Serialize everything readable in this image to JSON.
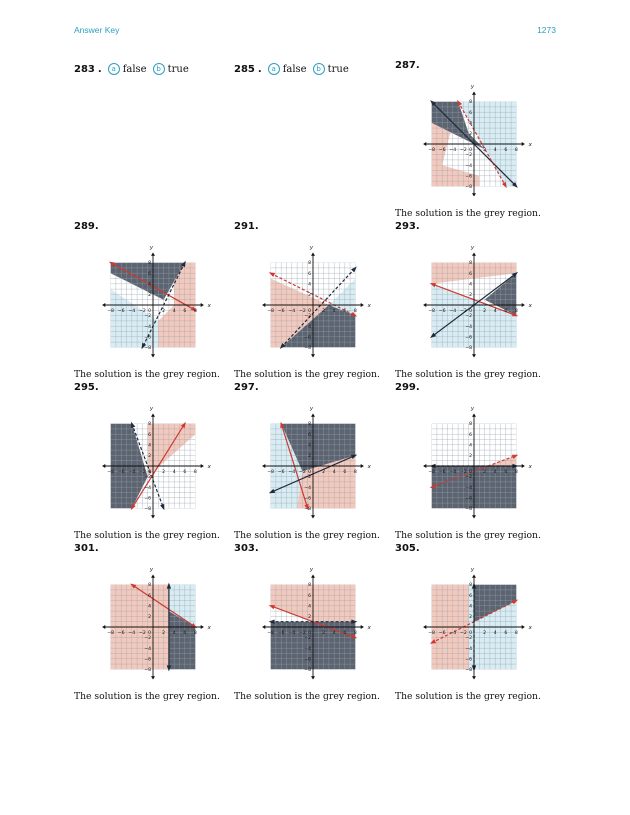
{
  "header": {
    "left": "Answer Key",
    "right": "1273"
  },
  "answers": [
    {
      "id": "283",
      "number": "283",
      "parts": [
        {
          "marker": "a",
          "text": "false"
        },
        {
          "marker": "b",
          "text": "true"
        }
      ]
    },
    {
      "id": "285",
      "number": "285",
      "parts": [
        {
          "marker": "a",
          "text": "false"
        },
        {
          "marker": "b",
          "text": "true"
        }
      ]
    }
  ],
  "caption_text": "The solution is the grey region.",
  "axis": {
    "x_label": "x",
    "y_label": "y",
    "ticks": [
      -8,
      -6,
      -4,
      -2,
      2,
      4,
      6,
      8
    ],
    "min": -8,
    "max": 8
  },
  "colors": {
    "grey": "#5b6470",
    "pink": "#f3c9bd",
    "blue": "#d8ecf4",
    "dark_line": "#1f2a3a",
    "red_line": "#cc3a33",
    "accent": "#2a9fbf"
  },
  "graphs": [
    {
      "number": "287",
      "caption": "The solution is the grey region.",
      "regions": [
        {
          "color": "pink",
          "poly": [
            [
              -8,
              8
            ],
            [
              -3,
              8
            ],
            [
              -6,
              -4
            ],
            [
              -8,
              -4
            ]
          ]
        },
        {
          "color": "pink",
          "poly": [
            [
              -8,
              -4
            ],
            [
              -6,
              -4
            ],
            [
              1,
              -6
            ],
            [
              1,
              -8
            ],
            [
              -8,
              -8
            ]
          ]
        },
        {
          "color": "blue",
          "poly": [
            [
              -3,
              8
            ],
            [
              8,
              8
            ],
            [
              8,
              -8
            ],
            [
              6,
              -8
            ],
            [
              -3,
              8
            ]
          ]
        },
        {
          "color": "grey",
          "poly": [
            [
              -8,
              8
            ],
            [
              -3,
              8
            ],
            [
              -1,
              2
            ],
            [
              2,
              -1
            ],
            [
              -8,
              4
            ]
          ]
        }
      ],
      "lines": [
        {
          "p1": [
            -8,
            8
          ],
          "p2": [
            8,
            -8
          ],
          "color": "dark_line",
          "dashed": false
        },
        {
          "p1": [
            -3,
            8
          ],
          "p2": [
            6,
            -8
          ],
          "color": "red_line",
          "dashed": true
        }
      ]
    },
    {
      "number": "289",
      "caption": "The solution is the grey region.",
      "regions": [
        {
          "color": "blue",
          "poly": [
            [
              -8,
              8
            ],
            [
              -8,
              -8
            ],
            [
              1,
              -8
            ],
            [
              1,
              -3
            ],
            [
              -8,
              3
            ]
          ]
        },
        {
          "color": "pink",
          "poly": [
            [
              4,
              8
            ],
            [
              8,
              8
            ],
            [
              8,
              -8
            ],
            [
              1,
              -8
            ],
            [
              1,
              -3
            ],
            [
              4,
              0
            ]
          ]
        },
        {
          "color": "grey",
          "poly": [
            [
              -8,
              8
            ],
            [
              6,
              8
            ],
            [
              2,
              1
            ],
            [
              -8,
              6
            ]
          ]
        }
      ],
      "lines": [
        {
          "p1": [
            -8,
            8
          ],
          "p2": [
            8,
            -1
          ],
          "color": "red_line",
          "dashed": false
        },
        {
          "p1": [
            6,
            8
          ],
          "p2": [
            -2,
            -8
          ],
          "color": "dark_line",
          "dashed": true
        }
      ]
    },
    {
      "number": "291",
      "caption": "The solution is the grey region.",
      "regions": [
        {
          "color": "pink",
          "poly": [
            [
              -8,
              8
            ],
            [
              -8,
              -8
            ],
            [
              -6,
              -8
            ],
            [
              3,
              0
            ],
            [
              -8,
              5
            ]
          ]
        },
        {
          "color": "blue",
          "poly": [
            [
              8,
              8
            ],
            [
              8,
              -2
            ],
            [
              3,
              0
            ],
            [
              8,
              5
            ]
          ]
        },
        {
          "color": "grey",
          "poly": [
            [
              -6,
              -8
            ],
            [
              8,
              -8
            ],
            [
              8,
              -2
            ],
            [
              3,
              0
            ]
          ]
        }
      ],
      "lines": [
        {
          "p1": [
            -8,
            6
          ],
          "p2": [
            8,
            -2
          ],
          "color": "red_line",
          "dashed": true
        },
        {
          "p1": [
            -6,
            -8
          ],
          "p2": [
            8,
            7
          ],
          "color": "dark_line",
          "dashed": true
        }
      ]
    },
    {
      "number": "293",
      "caption": "The solution is the grey region.",
      "regions": [
        {
          "color": "pink",
          "poly": [
            [
              -8,
              8
            ],
            [
              8,
              8
            ],
            [
              8,
              6
            ],
            [
              -8,
              4
            ]
          ]
        },
        {
          "color": "blue",
          "poly": [
            [
              -8,
              4
            ],
            [
              8,
              -2
            ],
            [
              8,
              -8
            ],
            [
              -8,
              -8
            ]
          ]
        },
        {
          "color": "grey",
          "poly": [
            [
              2,
              1
            ],
            [
              8,
              6
            ],
            [
              8,
              -2
            ]
          ]
        }
      ],
      "lines": [
        {
          "p1": [
            -8,
            4
          ],
          "p2": [
            8,
            -2
          ],
          "color": "red_line",
          "dashed": false
        },
        {
          "p1": [
            -8,
            -6
          ],
          "p2": [
            8,
            6
          ],
          "color": "dark_line",
          "dashed": false
        }
      ]
    },
    {
      "number": "295",
      "caption": "The solution is the grey region.",
      "regions": [
        {
          "color": "pink",
          "poly": [
            [
              -1,
              8
            ],
            [
              8,
              8
            ],
            [
              8,
              6
            ],
            [
              -1,
              -2
            ]
          ]
        },
        {
          "color": "grey",
          "poly": [
            [
              -8,
              8
            ],
            [
              -4,
              8
            ],
            [
              -1,
              -2
            ],
            [
              -4,
              -8
            ],
            [
              -8,
              -8
            ]
          ]
        }
      ],
      "lines": [
        {
          "p1": [
            -4,
            8
          ],
          "p2": [
            2,
            -8
          ],
          "color": "dark_line",
          "dashed": true
        },
        {
          "p1": [
            -4,
            -8
          ],
          "p2": [
            6,
            8
          ],
          "color": "red_line",
          "dashed": false
        }
      ]
    },
    {
      "number": "297",
      "caption": "The solution is the grey region.",
      "regions": [
        {
          "color": "blue",
          "poly": [
            [
              -8,
              8
            ],
            [
              -8,
              -8
            ],
            [
              -3,
              -8
            ],
            [
              -2,
              -1
            ],
            [
              -6,
              8
            ]
          ]
        },
        {
          "color": "pink",
          "poly": [
            [
              -2,
              -1
            ],
            [
              8,
              2
            ],
            [
              8,
              -8
            ],
            [
              -3,
              -8
            ]
          ]
        },
        {
          "color": "grey",
          "poly": [
            [
              -6,
              8
            ],
            [
              8,
              8
            ],
            [
              8,
              2
            ],
            [
              -2,
              -1
            ]
          ]
        }
      ],
      "lines": [
        {
          "p1": [
            -6,
            8
          ],
          "p2": [
            -1,
            -8
          ],
          "color": "red_line",
          "dashed": false
        },
        {
          "p1": [
            -8,
            -5
          ],
          "p2": [
            8,
            2
          ],
          "color": "dark_line",
          "dashed": false
        }
      ]
    },
    {
      "number": "299",
      "caption": "The solution is the grey region.",
      "regions": [
        {
          "color": "pink",
          "poly": [
            [
              -8,
              -4
            ],
            [
              8,
              2
            ],
            [
              8,
              0
            ],
            [
              -8,
              0
            ]
          ]
        },
        {
          "color": "grey",
          "poly": [
            [
              -8,
              0
            ],
            [
              8,
              0
            ],
            [
              8,
              -8
            ],
            [
              -8,
              -8
            ]
          ]
        }
      ],
      "lines": [
        {
          "p1": [
            -8,
            -4
          ],
          "p2": [
            8,
            2
          ],
          "color": "red_line",
          "dashed": true
        },
        {
          "p1": [
            -8,
            0
          ],
          "p2": [
            8,
            0
          ],
          "color": "dark_line",
          "dashed": true
        }
      ]
    },
    {
      "number": "301",
      "caption": "The solution is the grey region.",
      "regions": [
        {
          "color": "pink",
          "poly": [
            [
              -8,
              8
            ],
            [
              3,
              8
            ],
            [
              3,
              -8
            ],
            [
              -8,
              -8
            ]
          ]
        },
        {
          "color": "blue",
          "poly": [
            [
              3,
              8
            ],
            [
              8,
              8
            ],
            [
              8,
              0
            ],
            [
              3,
              3
            ]
          ]
        },
        {
          "color": "grey",
          "poly": [
            [
              3,
              3
            ],
            [
              8,
              0
            ],
            [
              8,
              -8
            ],
            [
              3,
              -8
            ]
          ]
        }
      ],
      "lines": [
        {
          "p1": [
            -4,
            8
          ],
          "p2": [
            8,
            0
          ],
          "color": "red_line",
          "dashed": false
        },
        {
          "p1": [
            3,
            8
          ],
          "p2": [
            3,
            -8
          ],
          "color": "dark_line",
          "dashed": false
        }
      ]
    },
    {
      "number": "303",
      "caption": "The solution is the grey region.",
      "regions": [
        {
          "color": "pink",
          "poly": [
            [
              -8,
              8
            ],
            [
              8,
              8
            ],
            [
              8,
              -2
            ],
            [
              -8,
              4
            ]
          ]
        },
        {
          "color": "grey",
          "poly": [
            [
              -8,
              1
            ],
            [
              8,
              1
            ],
            [
              8,
              -8
            ],
            [
              -8,
              -8
            ]
          ]
        }
      ],
      "lines": [
        {
          "p1": [
            -8,
            4
          ],
          "p2": [
            8,
            -2
          ],
          "color": "red_line",
          "dashed": false
        },
        {
          "p1": [
            -8,
            1
          ],
          "p2": [
            8,
            1
          ],
          "color": "dark_line",
          "dashed": true
        }
      ]
    },
    {
      "number": "305",
      "caption": "The solution is the grey region.",
      "regions": [
        {
          "color": "pink",
          "poly": [
            [
              -8,
              8
            ],
            [
              -1,
              8
            ],
            [
              -1,
              -8
            ],
            [
              -8,
              -8
            ]
          ]
        },
        {
          "color": "blue",
          "poly": [
            [
              -1,
              8
            ],
            [
              8,
              8
            ],
            [
              8,
              -8
            ],
            [
              -1,
              -8
            ]
          ]
        },
        {
          "color": "grey",
          "poly": [
            [
              0,
              8
            ],
            [
              8,
              8
            ],
            [
              8,
              5
            ],
            [
              0,
              1
            ]
          ]
        }
      ],
      "lines": [
        {
          "p1": [
            -8,
            -3
          ],
          "p2": [
            8,
            5
          ],
          "color": "red_line",
          "dashed": true
        },
        {
          "p1": [
            0,
            8
          ],
          "p2": [
            0,
            -8
          ],
          "color": "dark_line",
          "dashed": true
        }
      ]
    }
  ]
}
